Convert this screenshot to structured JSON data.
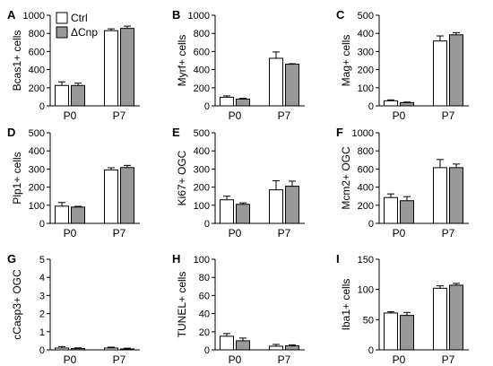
{
  "legend": {
    "series": [
      {
        "name": "Ctrl",
        "color": "#ffffff"
      },
      {
        "name": "ΔCnp",
        "color": "#999999"
      }
    ]
  },
  "chart_data": [
    {
      "type": "bar",
      "panel": "A",
      "ylabel": "Bcas1+ cells",
      "ylim": [
        0,
        1000
      ],
      "yticks": [
        0,
        200,
        400,
        600,
        800,
        1000
      ],
      "categories": [
        "P0",
        "P7"
      ],
      "series": [
        {
          "name": "Ctrl",
          "values": [
            225,
            830
          ],
          "errors": [
            40,
            20
          ]
        },
        {
          "name": "ΔCnp",
          "values": [
            225,
            855
          ],
          "errors": [
            25,
            25
          ]
        }
      ]
    },
    {
      "type": "bar",
      "panel": "B",
      "ylabel": "Myrf+ cells",
      "ylim": [
        0,
        1000
      ],
      "yticks": [
        0,
        200,
        400,
        600,
        800,
        1000
      ],
      "categories": [
        "P0",
        "P7"
      ],
      "series": [
        {
          "name": "Ctrl",
          "values": [
            95,
            525
          ],
          "errors": [
            15,
            70
          ]
        },
        {
          "name": "ΔCnp",
          "values": [
            75,
            460
          ],
          "errors": [
            8,
            5
          ]
        }
      ]
    },
    {
      "type": "bar",
      "panel": "C",
      "ylabel": "Mag+ cells",
      "ylim": [
        0,
        500
      ],
      "yticks": [
        0,
        100,
        200,
        300,
        400,
        500
      ],
      "categories": [
        "P0",
        "P7"
      ],
      "series": [
        {
          "name": "Ctrl",
          "values": [
            28,
            358
          ],
          "errors": [
            5,
            28
          ]
        },
        {
          "name": "ΔCnp",
          "values": [
            18,
            392
          ],
          "errors": [
            3,
            12
          ]
        }
      ]
    },
    {
      "type": "bar",
      "panel": "D",
      "ylabel": "Plp1+ cells",
      "ylim": [
        0,
        500
      ],
      "yticks": [
        0,
        100,
        200,
        300,
        400,
        500
      ],
      "categories": [
        "P0",
        "P7"
      ],
      "series": [
        {
          "name": "Ctrl",
          "values": [
            95,
            295
          ],
          "errors": [
            20,
            12
          ]
        },
        {
          "name": "ΔCnp",
          "values": [
            90,
            308
          ],
          "errors": [
            4,
            12
          ]
        }
      ]
    },
    {
      "type": "bar",
      "panel": "E",
      "ylabel": "Ki67+ OGC",
      "ylim": [
        0,
        500
      ],
      "yticks": [
        0,
        100,
        200,
        300,
        400,
        500
      ],
      "categories": [
        "P0",
        "P7"
      ],
      "series": [
        {
          "name": "Ctrl",
          "values": [
            130,
            185
          ],
          "errors": [
            20,
            50
          ]
        },
        {
          "name": "ΔCnp",
          "values": [
            105,
            205
          ],
          "errors": [
            8,
            28
          ]
        }
      ]
    },
    {
      "type": "bar",
      "panel": "F",
      "ylabel": "Mcm2+ OGC",
      "ylim": [
        0,
        1000
      ],
      "yticks": [
        0,
        200,
        400,
        600,
        800,
        1000
      ],
      "categories": [
        "P0",
        "P7"
      ],
      "series": [
        {
          "name": "Ctrl",
          "values": [
            285,
            615
          ],
          "errors": [
            40,
            90
          ]
        },
        {
          "name": "ΔCnp",
          "values": [
            250,
            615
          ],
          "errors": [
            45,
            40
          ]
        }
      ]
    },
    {
      "type": "bar",
      "panel": "G",
      "ylabel": "cCasp3+ OGC",
      "ylim": [
        0,
        5
      ],
      "yticks": [
        0,
        1,
        2,
        3,
        4,
        5
      ],
      "categories": [
        "P0",
        "P7"
      ],
      "series": [
        {
          "name": "Ctrl",
          "values": [
            0.1,
            0.1
          ],
          "errors": [
            0.08,
            0.05
          ]
        },
        {
          "name": "ΔCnp",
          "values": [
            0.07,
            0.05
          ],
          "errors": [
            0.04,
            0.04
          ]
        }
      ]
    },
    {
      "type": "bar",
      "panel": "H",
      "ylabel": "TUNEL+ cells",
      "ylim": [
        0,
        100
      ],
      "yticks": [
        0,
        20,
        40,
        60,
        80,
        100
      ],
      "categories": [
        "P0",
        "P7"
      ],
      "series": [
        {
          "name": "Ctrl",
          "values": [
            15,
            4
          ],
          "errors": [
            3,
            2
          ]
        },
        {
          "name": "ΔCnp",
          "values": [
            10,
            4.5
          ],
          "errors": [
            3,
            1
          ]
        }
      ]
    },
    {
      "type": "bar",
      "panel": "I",
      "ylabel": "Iba1+ cells",
      "ylim": [
        0,
        150
      ],
      "yticks": [
        0,
        50,
        100,
        150
      ],
      "categories": [
        "P0",
        "P7"
      ],
      "series": [
        {
          "name": "Ctrl",
          "values": [
            61,
            102
          ],
          "errors": [
            2,
            4
          ]
        },
        {
          "name": "ΔCnp",
          "values": [
            57,
            107
          ],
          "errors": [
            5,
            3
          ]
        }
      ]
    }
  ]
}
